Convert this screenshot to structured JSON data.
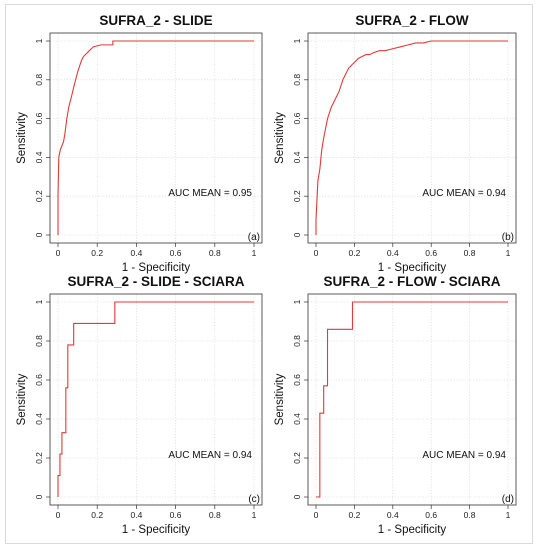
{
  "figure": {
    "line_color": "#e03a3a"
  },
  "chart_data": [
    {
      "type": "line",
      "title": "SUFRA_2 - SLIDE",
      "xlabel": "1 - Specificity",
      "ylabel": "Sensitivity",
      "xlim": [
        0,
        1
      ],
      "ylim": [
        0,
        1
      ],
      "xticks": [
        "0",
        "0.2",
        "0.4",
        "0.6",
        "0.8",
        "1"
      ],
      "yticks": [
        "0",
        "0.2",
        "0.4",
        "0.6",
        "0.8",
        "1"
      ],
      "grid": true,
      "annotation": "AUC MEAN = 0.95",
      "panel_tag": "(a)",
      "series": [
        {
          "x": [
            0,
            0,
            0.004,
            0.008,
            0.012,
            0.02,
            0.028,
            0.035,
            0.04,
            0.045,
            0.05,
            0.055,
            0.06,
            0.068,
            0.075,
            0.082,
            0.09,
            0.1,
            0.11,
            0.12,
            0.13,
            0.14,
            0.15,
            0.16,
            0.17,
            0.18,
            0.2,
            0.22,
            0.24,
            0.26,
            0.28,
            0.28,
            0.4,
            0.6,
            0.8,
            1
          ],
          "y": [
            0,
            0.2,
            0.4,
            0.42,
            0.44,
            0.46,
            0.48,
            0.52,
            0.56,
            0.6,
            0.63,
            0.66,
            0.68,
            0.71,
            0.74,
            0.77,
            0.8,
            0.84,
            0.87,
            0.9,
            0.92,
            0.93,
            0.94,
            0.95,
            0.96,
            0.97,
            0.975,
            0.98,
            0.98,
            0.98,
            0.98,
            1,
            1,
            1,
            1,
            1
          ]
        }
      ]
    },
    {
      "type": "line",
      "title": "SUFRA_2 - FLOW",
      "xlabel": "1 - Specificity",
      "ylabel": "Sensitivity",
      "xlim": [
        0,
        1
      ],
      "ylim": [
        0,
        1
      ],
      "xticks": [
        "0",
        "0.2",
        "0.4",
        "0.6",
        "0.8",
        "1"
      ],
      "yticks": [
        "0",
        "0.2",
        "0.4",
        "0.6",
        "0.8",
        "1"
      ],
      "grid": true,
      "annotation": "AUC MEAN = 0.94",
      "panel_tag": "(b)",
      "series": [
        {
          "x": [
            0,
            0,
            0.01,
            0.02,
            0.03,
            0.04,
            0.05,
            0.06,
            0.07,
            0.08,
            0.09,
            0.1,
            0.11,
            0.12,
            0.13,
            0.14,
            0.15,
            0.16,
            0.17,
            0.18,
            0.19,
            0.2,
            0.22,
            0.24,
            0.26,
            0.28,
            0.3,
            0.33,
            0.36,
            0.4,
            0.44,
            0.48,
            0.52,
            0.56,
            0.6,
            0.7,
            0.8,
            0.9,
            1
          ],
          "y": [
            0,
            0.08,
            0.28,
            0.34,
            0.44,
            0.5,
            0.55,
            0.6,
            0.63,
            0.66,
            0.68,
            0.7,
            0.72,
            0.74,
            0.77,
            0.8,
            0.82,
            0.84,
            0.86,
            0.87,
            0.88,
            0.89,
            0.91,
            0.92,
            0.93,
            0.93,
            0.94,
            0.95,
            0.95,
            0.96,
            0.97,
            0.98,
            0.99,
            0.99,
            1,
            1,
            1,
            1,
            1
          ]
        }
      ]
    },
    {
      "type": "line",
      "title": "SUFRA_2 - SLIDE - SCIARA",
      "xlabel": "1 - Specificity",
      "ylabel": "Sensitivity",
      "xlim": [
        0,
        1
      ],
      "ylim": [
        0,
        1
      ],
      "xticks": [
        "0",
        "0.2",
        "0.4",
        "0.6",
        "0.8",
        "1"
      ],
      "yticks": [
        "0",
        "0.2",
        "0.4",
        "0.6",
        "0.8",
        "1"
      ],
      "grid": true,
      "annotation": "AUC MEAN = 0.94",
      "panel_tag": "(c)",
      "series": [
        {
          "x": [
            0,
            0,
            0.01,
            0.01,
            0.02,
            0.02,
            0.04,
            0.04,
            0.05,
            0.05,
            0.08,
            0.08,
            0.1,
            0.1,
            0.29,
            0.29,
            1
          ],
          "y": [
            0,
            0.11,
            0.11,
            0.22,
            0.22,
            0.33,
            0.33,
            0.56,
            0.56,
            0.78,
            0.78,
            0.89,
            0.89,
            0.89,
            0.89,
            1,
            1
          ]
        }
      ]
    },
    {
      "type": "line",
      "title": "SUFRA_2 - FLOW - SCIARA",
      "xlabel": "1 - Specificity",
      "ylabel": "Sensitivity",
      "xlim": [
        0,
        1
      ],
      "ylim": [
        0,
        1
      ],
      "xticks": [
        "0",
        "0.2",
        "0.4",
        "0.6",
        "0.8",
        "1"
      ],
      "yticks": [
        "0",
        "0.2",
        "0.4",
        "0.6",
        "0.8",
        "1"
      ],
      "grid": true,
      "annotation": "AUC MEAN = 0.94",
      "panel_tag": "(d)",
      "series": [
        {
          "x": [
            0,
            0.02,
            0.02,
            0.04,
            0.04,
            0.06,
            0.06,
            0.19,
            0.19,
            1
          ],
          "y": [
            0,
            0,
            0.43,
            0.43,
            0.57,
            0.57,
            0.86,
            0.86,
            1,
            1
          ]
        }
      ]
    }
  ]
}
